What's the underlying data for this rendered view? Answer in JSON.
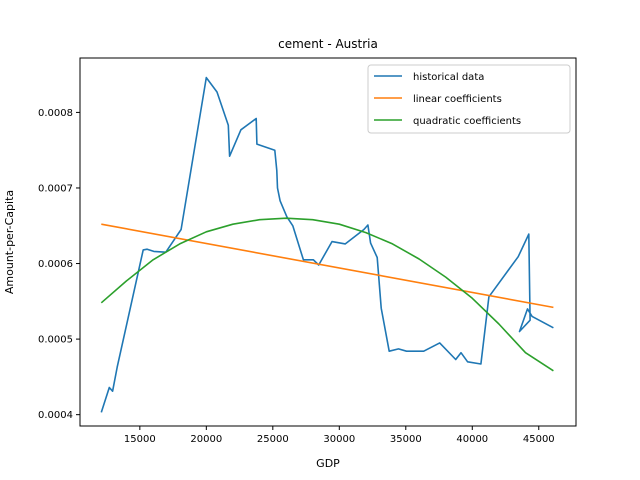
{
  "chart_data": {
    "type": "line",
    "title": "cement - Austria",
    "xlabel": "GDP",
    "ylabel": "Amount-per-Capita",
    "xlim": [
      10500,
      47800
    ],
    "ylim": [
      0.000385,
      0.000872
    ],
    "xticks": [
      15000,
      20000,
      25000,
      30000,
      35000,
      40000,
      45000
    ],
    "xtick_labels": [
      "15000",
      "20000",
      "25000",
      "30000",
      "35000",
      "40000",
      "45000"
    ],
    "yticks": [
      0.0004,
      0.0005,
      0.0006,
      0.0007,
      0.0008
    ],
    "ytick_labels": [
      "0.0004",
      "0.0005",
      "0.0006",
      "0.0007",
      "0.0008"
    ],
    "grid": false,
    "legend_position": "top-right",
    "series": [
      {
        "name": "historical data",
        "color": "#1f77b4",
        "x": [
          12100,
          12700,
          12950,
          13300,
          15250,
          15550,
          16050,
          16950,
          18100,
          20000,
          20800,
          21650,
          21750,
          22600,
          23750,
          23800,
          25150,
          25300,
          25350,
          25550,
          26050,
          26500,
          27300,
          28050,
          28450,
          29450,
          30450,
          31850,
          32150,
          32350,
          32850,
          33150,
          33750,
          34450,
          35050,
          36350,
          37550,
          38750,
          39150,
          39650,
          40650,
          41250,
          43450,
          44250,
          44350,
          43550,
          44150,
          44500,
          46100
        ],
        "y": [
          0.000403,
          0.000436,
          0.000431,
          0.000463,
          0.000618,
          0.000619,
          0.000616,
          0.000615,
          0.000645,
          0.000846,
          0.000827,
          0.000783,
          0.000742,
          0.000777,
          0.000792,
          0.000758,
          0.00075,
          0.000723,
          0.0007,
          0.000683,
          0.000662,
          0.00065,
          0.000605,
          0.000605,
          0.000598,
          0.000629,
          0.000626,
          0.000645,
          0.000651,
          0.000627,
          0.000608,
          0.000541,
          0.000484,
          0.000487,
          0.000484,
          0.000484,
          0.000495,
          0.000473,
          0.000482,
          0.00047,
          0.000467,
          0.000556,
          0.000609,
          0.000639,
          0.000525,
          0.00051,
          0.00054,
          0.00053,
          0.000515
        ]
      },
      {
        "name": "linear coefficients",
        "color": "#ff7f0e",
        "x": [
          12100,
          46100
        ],
        "y": [
          0.000652,
          0.000542
        ]
      },
      {
        "name": "quadratic coefficients",
        "color": "#2ca02c",
        "x": [
          12100,
          14000,
          16000,
          18000,
          20000,
          22000,
          24000,
          26000,
          28000,
          30000,
          32000,
          34000,
          36000,
          38000,
          40000,
          42000,
          44000,
          46100
        ],
        "y": [
          0.000548,
          0.000577,
          0.000605,
          0.000626,
          0.000642,
          0.000652,
          0.000658,
          0.00066,
          0.000658,
          0.000652,
          0.000641,
          0.000626,
          0.000606,
          0.000582,
          0.000554,
          0.00052,
          0.000482,
          0.000458
        ]
      }
    ]
  }
}
